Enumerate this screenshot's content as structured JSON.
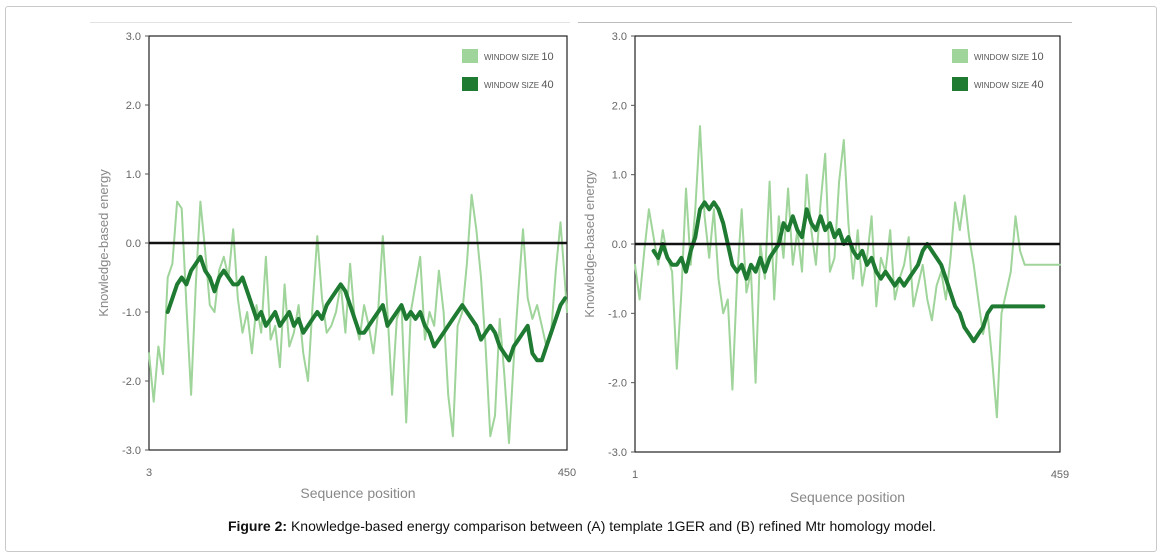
{
  "figure": {
    "label": "Figure 2:",
    "caption": "Knowledge-based energy comparison between (A) template 1GER and (B) refined Mtr homology model."
  },
  "colors": {
    "window10": "#9fd49a",
    "window40": "#1f7a32",
    "zero": "#111111",
    "axis": "#888888",
    "tick": "#666666"
  },
  "chart_data": [
    {
      "type": "line",
      "panel": "A",
      "xlabel": "Sequence position",
      "ylabel": "Knowledge-based energy",
      "xlim": [
        3,
        450
      ],
      "ylim": [
        -3.0,
        3.0
      ],
      "x_tick_labels": [
        "3",
        "450"
      ],
      "y_tick_labels": [
        "3.0",
        "2.0",
        "1.0",
        "0.0",
        "-1.0",
        "-2.0",
        "-3.0"
      ],
      "legend": [
        "WINDOW SIZE 10",
        "WINDOW SIZE 40"
      ],
      "series": [
        {
          "name": "WINDOW SIZE 10",
          "x": [
            3,
            8,
            13,
            18,
            23,
            28,
            33,
            38,
            43,
            48,
            53,
            58,
            63,
            68,
            73,
            78,
            83,
            88,
            93,
            98,
            103,
            108,
            113,
            118,
            123,
            128,
            133,
            138,
            143,
            148,
            153,
            158,
            163,
            168,
            173,
            178,
            183,
            188,
            193,
            198,
            203,
            208,
            213,
            218,
            223,
            228,
            233,
            238,
            243,
            248,
            253,
            258,
            263,
            268,
            273,
            278,
            283,
            288,
            293,
            298,
            303,
            308,
            313,
            318,
            323,
            328,
            333,
            338,
            343,
            348,
            353,
            358,
            363,
            368,
            373,
            378,
            383,
            388,
            393,
            398,
            403,
            408,
            413,
            418,
            423,
            428,
            433,
            438,
            443,
            448,
            450
          ],
          "values": [
            -1.6,
            -2.3,
            -1.5,
            -1.9,
            -0.5,
            -0.3,
            0.6,
            0.5,
            -0.9,
            -2.2,
            -0.6,
            0.6,
            -0.1,
            -0.9,
            -1.0,
            -0.4,
            -0.2,
            -0.5,
            0.2,
            -0.8,
            -1.3,
            -1.0,
            -1.6,
            -0.9,
            -1.3,
            -0.2,
            -1.4,
            -1.2,
            -1.8,
            -0.6,
            -1.5,
            -1.3,
            -0.9,
            -1.6,
            -2.0,
            -0.9,
            0.1,
            -0.8,
            -1.3,
            -1.2,
            -1.0,
            -0.6,
            -1.3,
            -0.3,
            -1.1,
            -1.4,
            -0.9,
            -1.2,
            -1.6,
            -1.0,
            0.1,
            -1.0,
            -2.2,
            -1.1,
            -0.9,
            -2.6,
            -1.0,
            -0.6,
            -0.2,
            -1.4,
            -1.0,
            -1.2,
            -0.4,
            -1.0,
            -2.2,
            -2.8,
            -1.2,
            -1.0,
            -0.3,
            0.7,
            0.2,
            -0.5,
            -1.5,
            -2.8,
            -2.5,
            -1.1,
            -1.9,
            -2.9,
            -1.7,
            -0.7,
            0.2,
            -0.8,
            -1.1,
            -0.9,
            -1.2,
            -1.5,
            -1.3,
            -0.4,
            0.3,
            -0.6,
            -1.0
          ]
        },
        {
          "name": "WINDOW SIZE 40",
          "x": [
            23,
            28,
            33,
            38,
            43,
            48,
            53,
            58,
            63,
            68,
            73,
            78,
            83,
            88,
            93,
            98,
            103,
            108,
            113,
            118,
            123,
            128,
            133,
            138,
            143,
            148,
            153,
            158,
            163,
            168,
            173,
            178,
            183,
            188,
            193,
            198,
            203,
            208,
            213,
            218,
            223,
            228,
            233,
            238,
            243,
            248,
            253,
            258,
            263,
            268,
            273,
            278,
            283,
            288,
            293,
            298,
            303,
            308,
            313,
            318,
            323,
            328,
            333,
            338,
            343,
            348,
            353,
            358,
            363,
            368,
            373,
            378,
            383,
            388,
            393,
            398,
            403,
            408,
            413,
            418,
            423,
            428,
            433,
            438,
            443,
            448
          ],
          "values": [
            -1.0,
            -0.8,
            -0.6,
            -0.5,
            -0.6,
            -0.4,
            -0.3,
            -0.2,
            -0.4,
            -0.5,
            -0.7,
            -0.5,
            -0.4,
            -0.5,
            -0.6,
            -0.6,
            -0.5,
            -0.7,
            -0.9,
            -1.1,
            -1.0,
            -1.2,
            -1.1,
            -1.0,
            -1.2,
            -1.1,
            -1.0,
            -1.2,
            -1.1,
            -1.3,
            -1.2,
            -1.1,
            -1.0,
            -1.1,
            -0.9,
            -0.8,
            -0.7,
            -0.6,
            -0.7,
            -0.9,
            -1.1,
            -1.3,
            -1.3,
            -1.2,
            -1.1,
            -1.0,
            -0.9,
            -1.2,
            -1.1,
            -1.0,
            -0.9,
            -1.1,
            -1.0,
            -1.1,
            -1.0,
            -1.2,
            -1.3,
            -1.5,
            -1.4,
            -1.3,
            -1.2,
            -1.1,
            -1.0,
            -0.9,
            -1.0,
            -1.1,
            -1.2,
            -1.4,
            -1.3,
            -1.2,
            -1.3,
            -1.5,
            -1.6,
            -1.7,
            -1.5,
            -1.4,
            -1.3,
            -1.2,
            -1.6,
            -1.7,
            -1.7,
            -1.5,
            -1.3,
            -1.1,
            -0.9,
            -0.8
          ]
        }
      ]
    },
    {
      "type": "line",
      "panel": "B",
      "xlabel": "Sequence position",
      "ylabel": "Knowledge-based energy",
      "xlim": [
        1,
        459
      ],
      "ylim": [
        -3.0,
        3.0
      ],
      "x_tick_labels": [
        "1",
        "459"
      ],
      "y_tick_labels": [
        "3.0",
        "2.0",
        "1.0",
        "0.0",
        "-1.0",
        "-2.0",
        "-3.0"
      ],
      "legend": [
        "WINDOW SIZE 10",
        "WINDOW SIZE 40"
      ],
      "series": [
        {
          "name": "WINDOW SIZE 10",
          "x": [
            1,
            6,
            11,
            16,
            21,
            26,
            31,
            36,
            41,
            46,
            51,
            56,
            61,
            66,
            71,
            76,
            81,
            86,
            91,
            96,
            101,
            106,
            111,
            116,
            121,
            126,
            131,
            136,
            141,
            146,
            151,
            156,
            161,
            166,
            171,
            176,
            181,
            186,
            191,
            196,
            201,
            206,
            211,
            216,
            221,
            226,
            231,
            236,
            241,
            246,
            251,
            256,
            261,
            266,
            271,
            276,
            281,
            286,
            291,
            296,
            301,
            306,
            311,
            316,
            321,
            326,
            331,
            336,
            341,
            346,
            351,
            356,
            361,
            366,
            371,
            376,
            381,
            386,
            391,
            396,
            401,
            406,
            411,
            416,
            421,
            426,
            431,
            436,
            441,
            446,
            451,
            456,
            459
          ],
          "values": [
            -0.3,
            -0.8,
            -0.1,
            0.5,
            0.1,
            -0.3,
            0.2,
            -0.2,
            -0.4,
            -1.8,
            -0.7,
            0.8,
            -0.3,
            0.5,
            1.7,
            0.4,
            -0.2,
            0.5,
            -0.5,
            -1.0,
            -0.8,
            -2.1,
            -0.5,
            0.5,
            -0.7,
            -0.4,
            -2.0,
            0.0,
            -0.5,
            0.9,
            -0.8,
            0.4,
            -0.2,
            0.8,
            -0.3,
            0.2,
            -0.4,
            1.0,
            0.2,
            -0.3,
            0.6,
            1.3,
            -0.4,
            -0.2,
            0.9,
            1.5,
            0.3,
            -0.5,
            0.2,
            -0.6,
            -0.2,
            0.4,
            -0.9,
            -0.2,
            -0.4,
            0.2,
            -0.8,
            -0.5,
            -0.3,
            0.1,
            -0.9,
            -0.6,
            -0.3,
            -0.8,
            -1.1,
            -0.6,
            -0.4,
            -0.8,
            -0.2,
            0.6,
            0.2,
            0.7,
            0.1,
            -0.3,
            -0.8,
            -1.3,
            -1.0,
            -1.7,
            -2.5,
            -1.0,
            -0.7,
            -0.4,
            0.4,
            -0.1,
            -0.3,
            -0.3,
            -0.3,
            -0.3,
            -0.3,
            -0.3,
            -0.3,
            -0.3,
            -0.3
          ]
        },
        {
          "name": "WINDOW SIZE 40",
          "x": [
            21,
            26,
            31,
            36,
            41,
            46,
            51,
            56,
            61,
            66,
            71,
            76,
            81,
            86,
            91,
            96,
            101,
            106,
            111,
            116,
            121,
            126,
            131,
            136,
            141,
            146,
            151,
            156,
            161,
            166,
            171,
            176,
            181,
            186,
            191,
            196,
            201,
            206,
            211,
            216,
            221,
            226,
            231,
            236,
            241,
            246,
            251,
            256,
            261,
            266,
            271,
            276,
            281,
            286,
            291,
            296,
            301,
            306,
            311,
            316,
            321,
            326,
            331,
            336,
            341,
            346,
            351,
            356,
            361,
            366,
            371,
            376,
            381,
            386,
            391,
            396,
            401,
            406,
            411,
            416,
            421,
            426,
            431,
            436,
            441
          ],
          "values": [
            -0.1,
            -0.2,
            0.0,
            -0.2,
            -0.3,
            -0.3,
            -0.2,
            -0.4,
            -0.1,
            0.1,
            0.5,
            0.6,
            0.5,
            0.6,
            0.5,
            0.3,
            0.0,
            -0.3,
            -0.4,
            -0.3,
            -0.5,
            -0.3,
            -0.4,
            -0.2,
            -0.4,
            -0.2,
            -0.1,
            0.0,
            0.3,
            0.2,
            0.4,
            0.2,
            0.1,
            0.5,
            0.3,
            0.2,
            0.4,
            0.2,
            0.3,
            0.1,
            0.2,
            0.0,
            0.1,
            -0.1,
            -0.2,
            -0.1,
            -0.3,
            -0.2,
            -0.4,
            -0.5,
            -0.4,
            -0.5,
            -0.6,
            -0.5,
            -0.6,
            -0.5,
            -0.4,
            -0.3,
            -0.1,
            0.0,
            -0.1,
            -0.2,
            -0.3,
            -0.5,
            -0.7,
            -0.9,
            -1.0,
            -1.2,
            -1.3,
            -1.4,
            -1.3,
            -1.2,
            -1.0,
            -0.9,
            -0.9,
            -0.9,
            -0.9,
            -0.9,
            -0.9,
            -0.9,
            -0.9,
            -0.9,
            -0.9,
            -0.9,
            -0.9
          ]
        }
      ]
    }
  ]
}
